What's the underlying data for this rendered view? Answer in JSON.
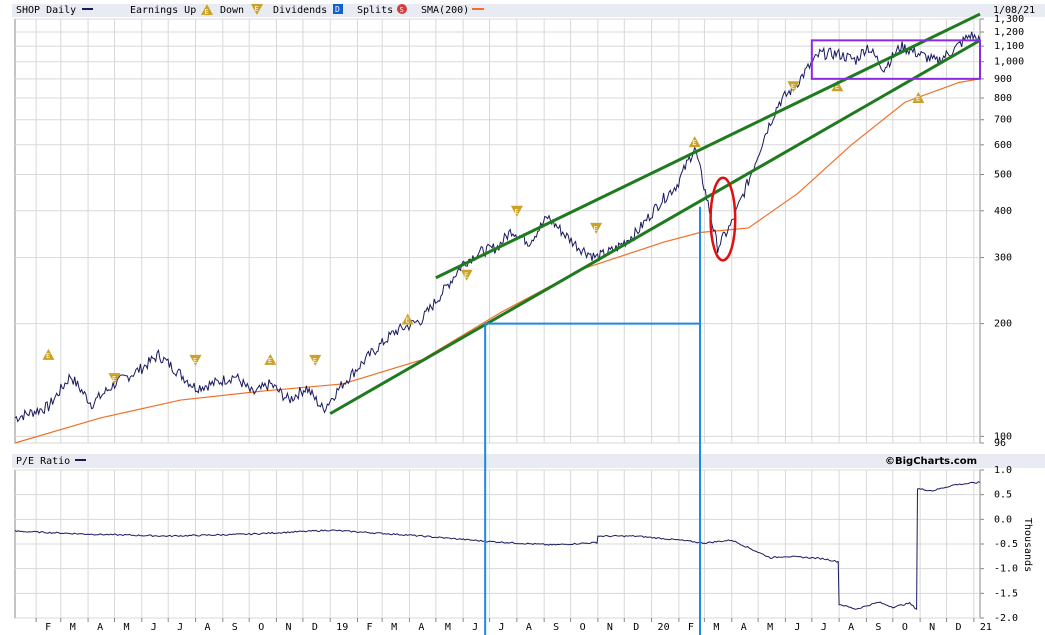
{
  "header": {
    "symbol_label": "SHOP Daily",
    "earnings_up_label": "Earnings Up",
    "down_label": "Down",
    "dividends_label": "Dividends",
    "splits_label": "Splits",
    "sma_label": "SMA(200)",
    "date_label": "1/08/21",
    "icons": {
      "earnings_up": "E",
      "down": "E",
      "dividends": "D",
      "splits": "S"
    }
  },
  "lower_panel": {
    "title": "P/E Ratio",
    "credit": "©BigCharts.com",
    "unit_label": "Thousands"
  },
  "colors": {
    "price": "#1a1a5e",
    "sma": "#f07028",
    "channel": "#1e7a1e",
    "box": "#8a2be2",
    "ellipse": "#e01010",
    "annotation": "#1e88e5",
    "earnings_marker": "#c9a227",
    "dividend_marker": "#1060d0",
    "split_marker": "#d04040"
  },
  "chart_data": [
    {
      "type": "line",
      "title": "SHOP Daily",
      "y_scale": "log",
      "ylim": [
        96,
        1300
      ],
      "y_ticks": [
        96,
        100,
        200,
        300,
        400,
        500,
        600,
        700,
        800,
        900,
        1000,
        1100,
        1200,
        1300
      ],
      "y_tick_labels": [
        "96",
        "100",
        "200",
        "300",
        "400",
        "500",
        "600",
        "700",
        "800",
        "900",
        "1,000",
        "1,100",
        "1,200",
        "1,300"
      ],
      "x_tick_labels": [
        "F",
        "M",
        "A",
        "M",
        "J",
        "J",
        "A",
        "S",
        "O",
        "N",
        "D",
        "19",
        "F",
        "M",
        "A",
        "M",
        "J",
        "J",
        "A",
        "S",
        "O",
        "N",
        "D",
        "20",
        "F",
        "M",
        "A",
        "M",
        "J",
        "J",
        "A",
        "S",
        "O",
        "N",
        "D",
        "21"
      ],
      "x_range": [
        "2018-01-08",
        "2021-01-08"
      ],
      "series": [
        {
          "name": "SHOP Daily",
          "x": [
            "2018-01-08",
            "2018-02-15",
            "2018-03-12",
            "2018-04-05",
            "2018-05-01",
            "2018-06-01",
            "2018-06-20",
            "2018-07-10",
            "2018-08-01",
            "2018-08-20",
            "2018-09-15",
            "2018-10-05",
            "2018-10-25",
            "2018-11-15",
            "2018-12-05",
            "2018-12-24",
            "2019-01-15",
            "2019-02-15",
            "2019-03-15",
            "2019-04-15",
            "2019-05-10",
            "2019-06-01",
            "2019-06-20",
            "2019-07-10",
            "2019-07-26",
            "2019-08-15",
            "2019-09-05",
            "2019-09-25",
            "2019-10-10",
            "2019-10-30",
            "2019-11-20",
            "2019-12-15",
            "2020-01-10",
            "2020-01-30",
            "2020-02-19",
            "2020-03-02",
            "2020-03-16",
            "2020-04-01",
            "2020-04-20",
            "2020-05-10",
            "2020-05-25",
            "2020-06-10",
            "2020-06-25",
            "2020-07-10",
            "2020-07-30",
            "2020-08-20",
            "2020-09-02",
            "2020-09-21",
            "2020-10-10",
            "2020-10-30",
            "2020-11-20",
            "2020-12-10",
            "2020-12-28",
            "2021-01-08"
          ],
          "y": [
            112,
            120,
            145,
            122,
            138,
            152,
            165,
            150,
            135,
            138,
            145,
            130,
            138,
            125,
            135,
            118,
            138,
            165,
            190,
            205,
            245,
            290,
            310,
            320,
            355,
            330,
            385,
            345,
            320,
            300,
            315,
            350,
            420,
            470,
            590,
            450,
            320,
            370,
            480,
            650,
            780,
            850,
            950,
            1050,
            1050,
            1010,
            1100,
            960,
            1100,
            1050,
            1000,
            1080,
            1180,
            1140
          ]
        },
        {
          "name": "SMA(200)",
          "x": [
            "2018-01-08",
            "2018-04-15",
            "2018-07-15",
            "2018-10-15",
            "2019-01-15",
            "2019-04-15",
            "2019-07-15",
            "2019-10-15",
            "2020-01-15",
            "2020-02-25",
            "2020-04-20",
            "2020-06-15",
            "2020-08-15",
            "2020-10-15",
            "2020-12-15",
            "2021-01-08"
          ],
          "y": [
            96,
            112,
            125,
            132,
            138,
            160,
            215,
            280,
            330,
            350,
            360,
            445,
            600,
            780,
            880,
            900
          ]
        }
      ],
      "annotations": [
        {
          "shape": "line",
          "name": "channel-upper",
          "x": [
            "2019-05-01",
            "2021-01-08"
          ],
          "y": [
            265,
            1340
          ]
        },
        {
          "shape": "line",
          "name": "channel-lower",
          "x": [
            "2019-01-01",
            "2021-01-08"
          ],
          "y": [
            115,
            1140
          ]
        },
        {
          "shape": "rect",
          "name": "consolidation-box",
          "x": [
            "2020-07-01",
            "2021-01-08"
          ],
          "y": [
            900,
            1140
          ]
        },
        {
          "shape": "ellipse",
          "name": "covid-dip",
          "x": [
            "2020-03-08",
            "2020-04-05"
          ],
          "y": [
            295,
            490
          ]
        },
        {
          "shape": "rect",
          "name": "measured-move",
          "x": [
            "2019-06-26",
            "2020-02-25"
          ],
          "y": [
            200,
            200
          ]
        }
      ],
      "earnings_markers": [
        {
          "x": "2018-02-15",
          "y": 165,
          "dir": "up"
        },
        {
          "x": "2018-05-01",
          "y": 143,
          "dir": "down"
        },
        {
          "x": "2018-08-01",
          "y": 160,
          "dir": "down"
        },
        {
          "x": "2018-10-25",
          "y": 160,
          "dir": "up"
        },
        {
          "x": "2018-12-15",
          "y": 160,
          "dir": "down"
        },
        {
          "x": "2019-03-30",
          "y": 205,
          "dir": "up"
        },
        {
          "x": "2019-06-05",
          "y": 270,
          "dir": "down"
        },
        {
          "x": "2019-08-01",
          "y": 400,
          "dir": "down"
        },
        {
          "x": "2019-10-30",
          "y": 360,
          "dir": "down"
        },
        {
          "x": "2020-02-19",
          "y": 610,
          "dir": "up"
        },
        {
          "x": "2020-06-10",
          "y": 860,
          "dir": "down"
        },
        {
          "x": "2020-07-30",
          "y": 860,
          "dir": "up"
        },
        {
          "x": "2020-10-30",
          "y": 800,
          "dir": "up"
        }
      ]
    },
    {
      "type": "line",
      "title": "P/E Ratio",
      "ylabel": "Thousands",
      "ylim": [
        -2.0,
        1.0
      ],
      "y_ticks": [
        -2.0,
        -1.5,
        -1.0,
        -0.5,
        0.0,
        0.5,
        1.0
      ],
      "y_tick_labels": [
        "-2.0",
        "-1.5",
        "-1.0",
        "-0.5",
        "0.0",
        "0.5",
        "1.0"
      ],
      "x_tick_labels": [
        "F",
        "M",
        "A",
        "M",
        "J",
        "J",
        "A",
        "S",
        "O",
        "N",
        "D",
        "19",
        "F",
        "M",
        "A",
        "M",
        "J",
        "J",
        "A",
        "S",
        "O",
        "N",
        "D",
        "20",
        "F",
        "M",
        "A",
        "M",
        "J",
        "J",
        "A",
        "S",
        "O",
        "N",
        "D",
        "21"
      ],
      "x_range": [
        "2018-01-08",
        "2021-01-08"
      ],
      "series": [
        {
          "name": "P/E Ratio",
          "x": [
            "2018-01-08",
            "2018-04-01",
            "2018-07-01",
            "2018-10-01",
            "2019-01-01",
            "2019-04-01",
            "2019-07-01",
            "2019-09-10",
            "2019-10-31",
            "2019-11-01",
            "2019-12-15",
            "2020-02-01",
            "2020-03-01",
            "2020-04-01",
            "2020-05-15",
            "2020-06-01",
            "2020-07-01",
            "2020-07-15",
            "2020-07-31",
            "2020-08-01",
            "2020-08-20",
            "2020-09-15",
            "2020-10-01",
            "2020-10-20",
            "2020-10-28",
            "2020-10-29",
            "2020-11-15",
            "2020-12-10",
            "2021-01-08"
          ],
          "y": [
            -0.24,
            -0.3,
            -0.34,
            -0.3,
            -0.22,
            -0.32,
            -0.45,
            -0.52,
            -0.47,
            -0.34,
            -0.34,
            -0.42,
            -0.48,
            -0.42,
            -0.78,
            -0.75,
            -0.78,
            -0.8,
            -0.86,
            -1.72,
            -1.82,
            -1.68,
            -1.78,
            -1.7,
            -1.82,
            0.62,
            0.58,
            0.7,
            0.75
          ]
        }
      ]
    }
  ]
}
